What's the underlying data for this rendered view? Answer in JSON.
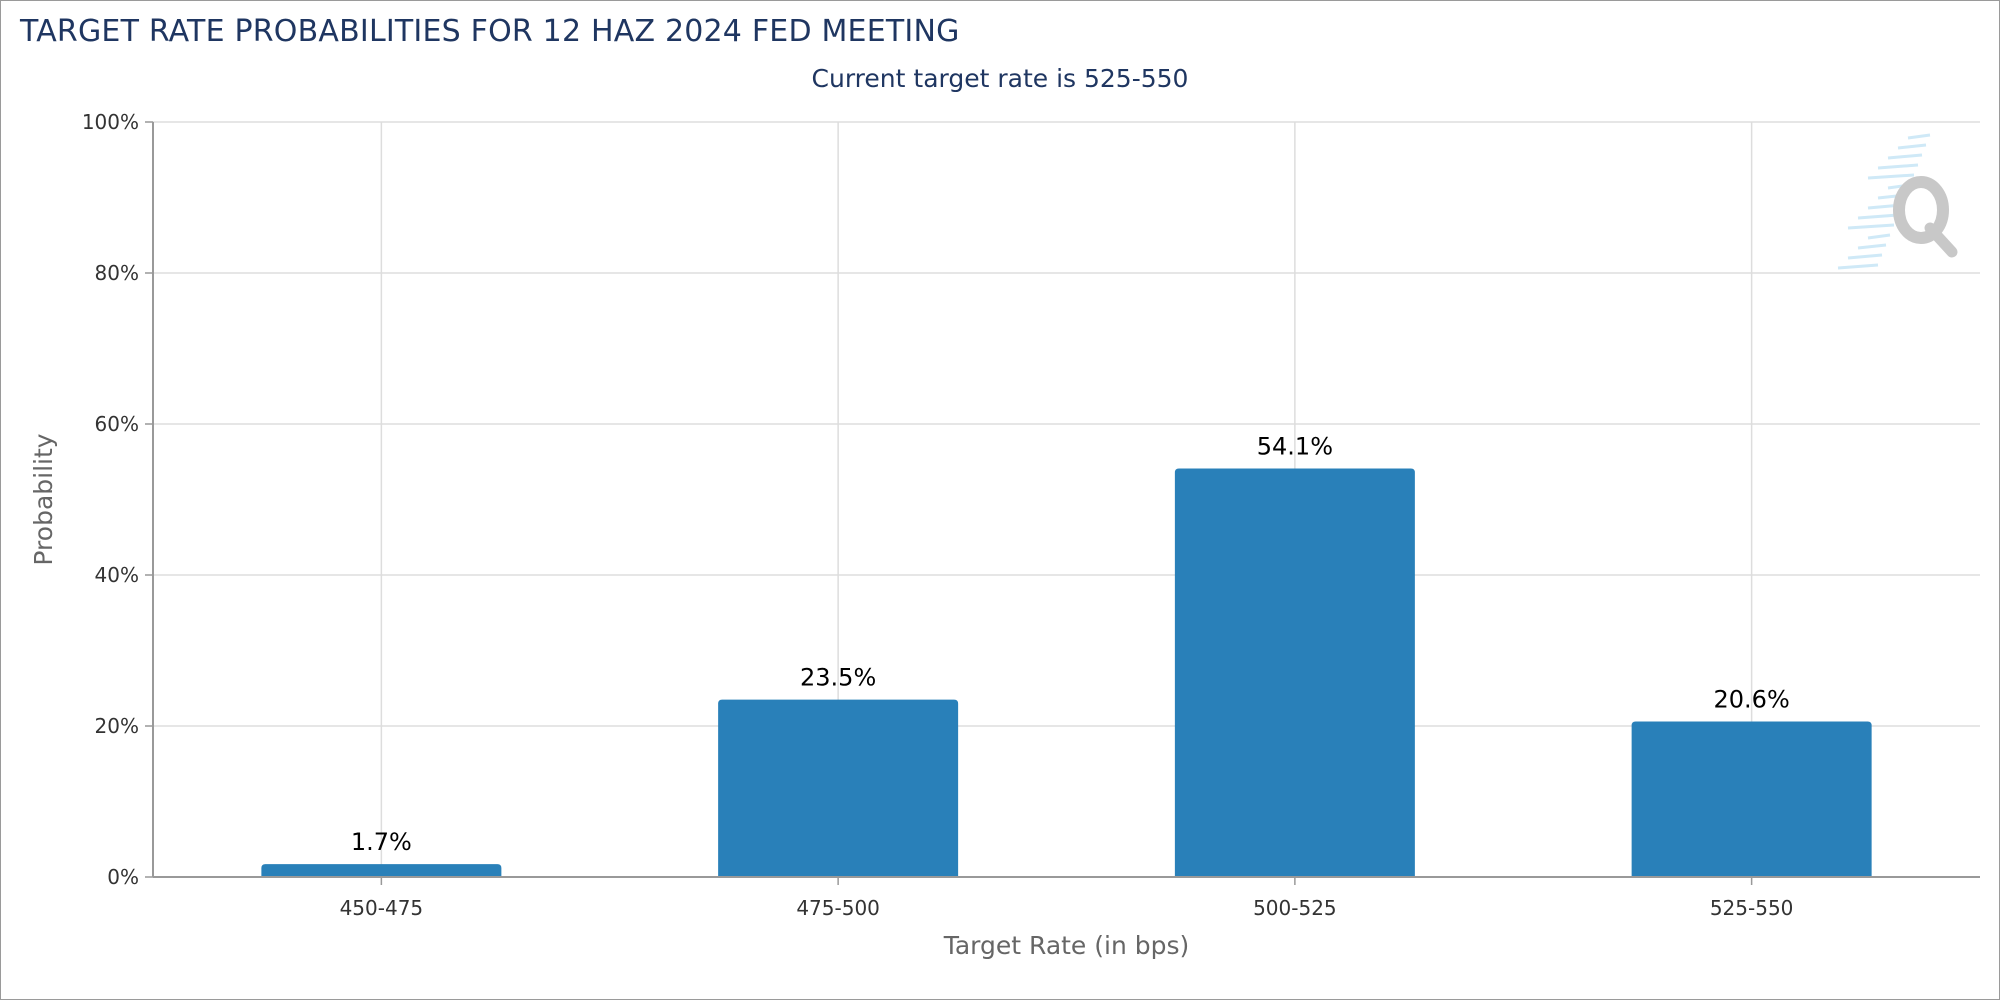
{
  "header": {
    "title": "TARGET RATE PROBABILITIES FOR 12 HAZ 2024 FED MEETING",
    "subtitle": "Current target rate is 525-550"
  },
  "colors": {
    "bar": "#2980b9",
    "title": "#1f3661",
    "grid": "#dddddd",
    "axis": "#999999"
  },
  "watermark": {
    "icon": "q-logo-icon"
  },
  "chart_data": {
    "type": "bar",
    "title": "TARGET RATE PROBABILITIES FOR 12 HAZ 2024 FED MEETING",
    "subtitle": "Current target rate is 525-550",
    "xlabel": "Target Rate (in bps)",
    "ylabel": "Probability",
    "categories": [
      "450-475",
      "475-500",
      "500-525",
      "525-550"
    ],
    "values": [
      1.7,
      23.5,
      54.1,
      20.6
    ],
    "value_labels": [
      "1.7%",
      "23.5%",
      "54.1%",
      "20.6%"
    ],
    "ylim": [
      0,
      100
    ],
    "yticks": [
      0,
      20,
      40,
      60,
      80,
      100
    ],
    "ytick_labels": [
      "0%",
      "20%",
      "40%",
      "60%",
      "80%",
      "100%"
    ],
    "grid": true,
    "legend": "none"
  }
}
